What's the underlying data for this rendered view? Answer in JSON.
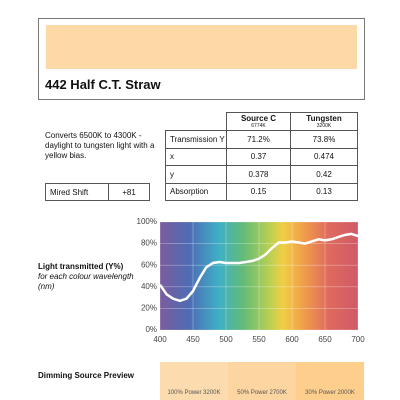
{
  "header": {
    "title": "442 Half C.T. Straw",
    "swatch_color": "#fdd9a8"
  },
  "description": "Converts 6500K to 4300K - daylight to tungsten light with a yellow bias.",
  "mired": {
    "label": "Mired Shift",
    "value": "+81"
  },
  "table": {
    "columns": [
      {
        "name": "Source C",
        "sub": "6774K"
      },
      {
        "name": "Tungsten",
        "sub": "3200K"
      }
    ],
    "rows": [
      [
        "Transmission Y",
        "71.2%",
        "73.8%"
      ],
      [
        "x",
        "0.37",
        "0.474"
      ],
      [
        "y",
        "0.378",
        "0.42"
      ],
      [
        "Absorption",
        "0.15",
        "0.13"
      ]
    ]
  },
  "chart_data": {
    "type": "line",
    "title": "Light transmitted (Y%)",
    "subtitle": "for each colour wavelength (nm)",
    "x": [
      400,
      410,
      420,
      430,
      440,
      450,
      460,
      470,
      480,
      490,
      500,
      510,
      520,
      530,
      540,
      550,
      560,
      570,
      580,
      590,
      600,
      610,
      620,
      630,
      640,
      650,
      660,
      670,
      680,
      690,
      700
    ],
    "values": [
      42,
      33,
      29,
      27,
      29,
      36,
      48,
      58,
      62,
      63,
      62,
      62,
      62,
      63,
      64,
      66,
      70,
      76,
      81,
      81,
      82,
      81,
      80,
      82,
      84,
      83,
      84,
      86,
      88,
      89,
      87
    ],
    "color": "#ffffff",
    "xlim": [
      400,
      700
    ],
    "xticks": [
      400,
      450,
      500,
      550,
      600,
      650,
      700
    ],
    "ylim": [
      0,
      100
    ],
    "yticks": [
      {
        "value": 0,
        "label": "0%"
      },
      {
        "value": 20,
        "label": "20%"
      },
      {
        "value": 40,
        "label": "40%"
      },
      {
        "value": 60,
        "label": "60%"
      },
      {
        "value": 80,
        "label": "80%"
      },
      {
        "value": 100,
        "label": "100%"
      }
    ],
    "grid": true
  },
  "dimming": {
    "title": "Dimming Source Preview",
    "swatches": [
      {
        "label": "100% Power 3200K",
        "color": "#fcdcae"
      },
      {
        "label": "50% Power 2700K",
        "color": "#fdd5a0"
      },
      {
        "label": "30% Power 2000K",
        "color": "#fecf8c"
      }
    ]
  }
}
